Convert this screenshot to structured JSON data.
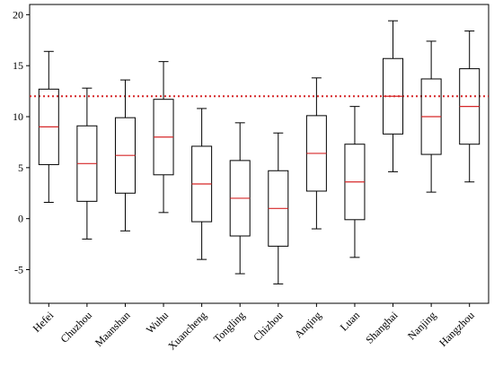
{
  "chart_data": {
    "type": "box",
    "categories": [
      "Hefei",
      "Chuzhou",
      "Maanshan",
      "Wuhu",
      "Xuancheng",
      "Tongling",
      "Chizhou",
      "Anqing",
      "Luan",
      "Shanghai",
      "Nanjing",
      "Hangzhou"
    ],
    "boxes": [
      {
        "whisker_low": 1.6,
        "q1": 5.3,
        "median": 9.0,
        "q3": 12.7,
        "whisker_high": 16.4
      },
      {
        "whisker_low": -2.0,
        "q1": 1.7,
        "median": 5.4,
        "q3": 9.1,
        "whisker_high": 12.8
      },
      {
        "whisker_low": -1.2,
        "q1": 2.5,
        "median": 6.2,
        "q3": 9.9,
        "whisker_high": 13.6
      },
      {
        "whisker_low": 0.6,
        "q1": 4.3,
        "median": 8.0,
        "q3": 11.7,
        "whisker_high": 15.4
      },
      {
        "whisker_low": -4.0,
        "q1": -0.3,
        "median": 3.4,
        "q3": 7.1,
        "whisker_high": 10.8
      },
      {
        "whisker_low": -5.4,
        "q1": -1.7,
        "median": 2.0,
        "q3": 5.7,
        "whisker_high": 9.4
      },
      {
        "whisker_low": -6.4,
        "q1": -2.7,
        "median": 1.0,
        "q3": 4.7,
        "whisker_high": 8.4
      },
      {
        "whisker_low": -1.0,
        "q1": 2.7,
        "median": 6.4,
        "q3": 10.1,
        "whisker_high": 13.8
      },
      {
        "whisker_low": -3.8,
        "q1": -0.1,
        "median": 3.6,
        "q3": 7.3,
        "whisker_high": 11.0
      },
      {
        "whisker_low": 4.6,
        "q1": 8.3,
        "median": 12.0,
        "q3": 15.7,
        "whisker_high": 19.4
      },
      {
        "whisker_low": 2.6,
        "q1": 6.3,
        "median": 10.0,
        "q3": 13.7,
        "whisker_high": 17.4
      },
      {
        "whisker_low": 3.6,
        "q1": 7.3,
        "median": 11.0,
        "q3": 14.7,
        "whisker_high": 18.4
      }
    ],
    "reference_line": {
      "y": 12.0,
      "style": "dotted",
      "color": "#d62728"
    },
    "ylim": [
      -8.3,
      21.0
    ],
    "yticks": [
      -5,
      0,
      5,
      10,
      15,
      20
    ],
    "grid": false,
    "colors": {
      "box": "#000000",
      "median": "#d62728"
    }
  }
}
